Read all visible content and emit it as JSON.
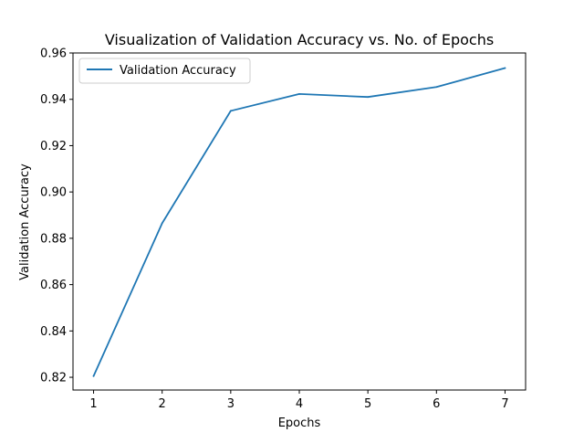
{
  "chart_data": {
    "type": "line",
    "title": "Visualization of Validation Accuracy vs. No. of Epochs",
    "xlabel": "Epochs",
    "ylabel": "Validation Accuracy",
    "x": [
      1,
      2,
      3,
      4,
      5,
      6,
      7
    ],
    "xticks": [
      "1",
      "2",
      "3",
      "4",
      "5",
      "6",
      "7"
    ],
    "yticks": [
      "0.82",
      "0.84",
      "0.86",
      "0.88",
      "0.90",
      "0.92",
      "0.94",
      "0.96"
    ],
    "xlim": [
      0.7,
      7.3
    ],
    "ylim": [
      0.8145,
      0.96
    ],
    "grid": false,
    "legend_position": "upper-left",
    "series": [
      {
        "name": "Validation Accuracy",
        "color": "#1f77b4",
        "values": [
          0.8205,
          0.8865,
          0.935,
          0.9423,
          0.941,
          0.9453,
          0.9535
        ]
      }
    ]
  }
}
